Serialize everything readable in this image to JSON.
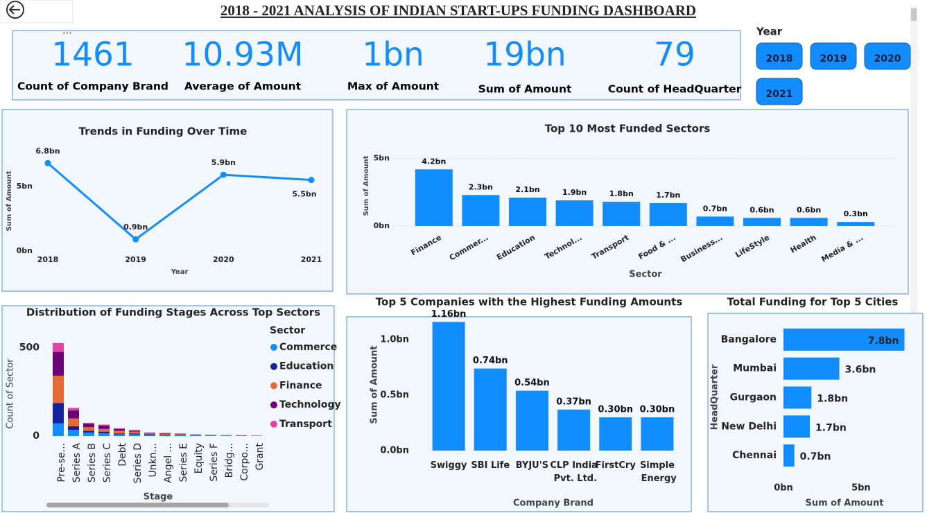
{
  "title": "2018 - 2021 ANALYSIS OF INDIAN START-UPS FUNDING DASHBOARD",
  "kpis": [
    {
      "value": "1461",
      "label": "Count of Company Brand"
    },
    {
      "value": "10.93M",
      "label": "Average of Amount"
    },
    {
      "value": "1bn",
      "label": "Max of Amount"
    },
    {
      "value": "19bn",
      "label": "Sum of Amount"
    },
    {
      "value": "79",
      "label": "Count of HeadQuarter"
    }
  ],
  "slicer": {
    "title": "Year",
    "options": [
      "2018",
      "2019",
      "2020",
      "2021"
    ]
  },
  "chart_data": [
    {
      "type": "line",
      "title": "Trends in Funding Over Time",
      "x_label": "Year",
      "y_label": "Sum of Amount",
      "categories": [
        "2018",
        "2019",
        "2020",
        "2021"
      ],
      "values": [
        6.8,
        0.9,
        5.9,
        5.5
      ],
      "value_labels": [
        "6.8bn",
        "0.9bn",
        "5.9bn",
        "5.5bn"
      ],
      "color": "#118dff",
      "ylim": [
        0,
        8
      ],
      "yticks": [
        {
          "value": 0,
          "label": "0bn"
        },
        {
          "value": 5,
          "label": "5bn"
        }
      ]
    },
    {
      "type": "bar",
      "title": "Top 10 Most Funded Sectors",
      "x_label": "Sector",
      "y_label": "Sum of Amount",
      "categories": [
        "Finance",
        "Commer...",
        "Education",
        "Technol...",
        "Transport",
        "Food & ...",
        "Business...",
        "LifeStyle",
        "Health",
        "Media & ..."
      ],
      "values": [
        4.2,
        2.3,
        2.1,
        1.9,
        1.8,
        1.7,
        0.7,
        0.6,
        0.6,
        0.3
      ],
      "value_labels": [
        "4.2bn",
        "2.3bn",
        "2.1bn",
        "1.9bn",
        "1.8bn",
        "1.7bn",
        "0.7bn",
        "0.6bn",
        "0.6bn",
        "0.3bn"
      ],
      "color": "#118dff",
      "grid": true,
      "ylim": [
        0,
        5.5
      ],
      "yticks": [
        {
          "value": 0,
          "label": "0bn"
        },
        {
          "value": 5,
          "label": "5bn"
        }
      ]
    },
    {
      "type": "bar",
      "stacked": true,
      "title": "Distribution of Funding Stages Across Top Sectors",
      "x_label": "Stage",
      "y_label": "Count of Sector",
      "legend_title": "Sector",
      "categories": [
        "Pre-se...",
        "Series A",
        "Series B",
        "Series C",
        "Debt",
        "Series D",
        "Unkn...",
        "Angel ...",
        "Series E",
        "Equity",
        "Series F",
        "Bridg...",
        "Corpo...",
        "Grant"
      ],
      "series": [
        {
          "name": "Commerce",
          "color": "#118dff",
          "values": [
            72,
            35,
            20,
            15,
            10,
            10,
            5,
            5,
            4,
            3,
            2,
            2,
            1,
            1
          ]
        },
        {
          "name": "Education",
          "color": "#12239e",
          "values": [
            115,
            20,
            10,
            10,
            5,
            5,
            5,
            3,
            3,
            2,
            1,
            1,
            1,
            0
          ]
        },
        {
          "name": "Finance",
          "color": "#e66c37",
          "values": [
            155,
            45,
            20,
            15,
            15,
            10,
            5,
            5,
            4,
            2,
            2,
            1,
            1,
            1
          ]
        },
        {
          "name": "Technology",
          "color": "#6b007b",
          "values": [
            135,
            45,
            20,
            20,
            10,
            5,
            3,
            3,
            2,
            2,
            2,
            1,
            1,
            1
          ]
        },
        {
          "name": "Transport",
          "color": "#e044a7",
          "values": [
            50,
            15,
            5,
            5,
            5,
            5,
            2,
            2,
            2,
            1,
            1,
            1,
            1,
            0
          ]
        }
      ],
      "ylim": [
        0,
        550
      ],
      "yticks": [
        0,
        500
      ]
    },
    {
      "type": "bar",
      "title": "Top 5 Companies with the Highest Funding Amounts",
      "x_label": "Company Brand",
      "y_label": "Sum of Amount",
      "categories": [
        "Swiggy",
        "SBI Life",
        "BYJU'S",
        "CLP India Pvt. Ltd.",
        "FirstCry",
        "Simple Energy"
      ],
      "values": [
        1.16,
        0.74,
        0.54,
        0.37,
        0.3,
        0.3
      ],
      "value_labels": [
        "1.16bn",
        "0.74bn",
        "0.54bn",
        "0.37bn",
        "0.30bn",
        "0.30bn"
      ],
      "color": "#118dff",
      "ylim": [
        0,
        1.2
      ],
      "yticks": [
        {
          "value": 0,
          "label": "0.0bn"
        },
        {
          "value": 0.5,
          "label": "0.5bn"
        },
        {
          "value": 1,
          "label": "1.0bn"
        }
      ]
    },
    {
      "type": "bar",
      "orientation": "horizontal",
      "title": "Total Funding for Top 5 Cities",
      "x_label": "Sum of Amount",
      "y_label": "HeadQuarter",
      "categories": [
        "Bangalore",
        "Mumbai",
        "Gurgaon",
        "New Delhi",
        "Chennai"
      ],
      "values": [
        7.8,
        3.6,
        1.8,
        1.7,
        0.7
      ],
      "value_labels": [
        "7.8bn",
        "3.6bn",
        "1.8bn",
        "1.7bn",
        "0.7bn"
      ],
      "color": "#118dff",
      "xlim": [
        0,
        8
      ],
      "xticks": [
        {
          "value": 0,
          "label": "0bn"
        },
        {
          "value": 5,
          "label": "5bn"
        }
      ]
    }
  ]
}
